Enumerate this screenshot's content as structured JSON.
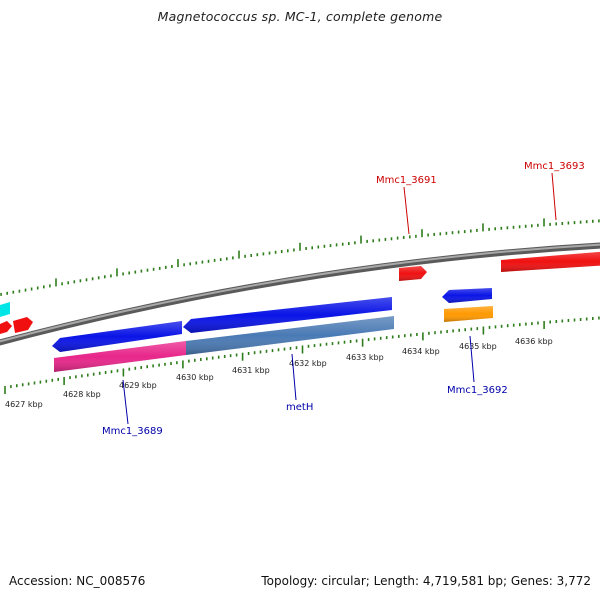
{
  "title": "Magnetococcus sp. MC-1, complete genome",
  "footer": {
    "accession": "Accession: NC_008576",
    "topology": "Topology: circular; Length: 4,719,581 bp; Genes: 3,772"
  },
  "colors": {
    "backbone": "#808080",
    "tick": "#2e7d1b",
    "reverse_strand_gene": "#0a14e6",
    "forward_strand_gene": "#f01010",
    "rna_orange": "#ff9900",
    "cds_pink": "#e8268a",
    "cds_steelblue": "#4a7ab4",
    "cyan_feature": "#00e5e5",
    "forward_label": "#cc0000",
    "reverse_label": "#0000aa"
  },
  "scale_labels": [
    "4627 kbp",
    "4628 kbp",
    "4629 kbp",
    "4630 kbp",
    "4631 kbp",
    "4632 kbp",
    "4633 kbp",
    "4634 kbp",
    "4635 kbp",
    "4636 kbp"
  ],
  "features": [
    {
      "kind": "forward-gene",
      "strand": "forward",
      "color": "#f01010"
    },
    {
      "kind": "forward-gene",
      "strand": "forward",
      "color": "#f01010"
    },
    {
      "kind": "forward-gene",
      "strand": "forward",
      "color": "#f01010"
    },
    {
      "kind": "forward-gene",
      "strand": "forward",
      "color": "#f01010"
    },
    {
      "kind": "reverse-gene",
      "strand": "reverse",
      "color": "#0a14e6"
    },
    {
      "kind": "reverse-gene",
      "strand": "reverse",
      "color": "#0a14e6"
    },
    {
      "kind": "reverse-gene",
      "strand": "reverse",
      "color": "#0a14e6"
    },
    {
      "kind": "cds-pink",
      "strand": "reverse",
      "color": "#e8268a"
    },
    {
      "kind": "cds-steelblue",
      "strand": "reverse",
      "color": "#4a7ab4"
    },
    {
      "kind": "rna-orange",
      "strand": "reverse",
      "color": "#ff9900"
    },
    {
      "kind": "cyan-feature",
      "strand": "forward",
      "color": "#00e5e5"
    }
  ],
  "gene_labels": [
    {
      "text": "Mmc1_3691",
      "strand": "forward"
    },
    {
      "text": "Mmc1_3693",
      "strand": "forward"
    },
    {
      "text": "Mmc1_3689",
      "strand": "reverse"
    },
    {
      "text": "metH",
      "strand": "reverse"
    },
    {
      "text": "Mmc1_3692",
      "strand": "reverse"
    }
  ]
}
